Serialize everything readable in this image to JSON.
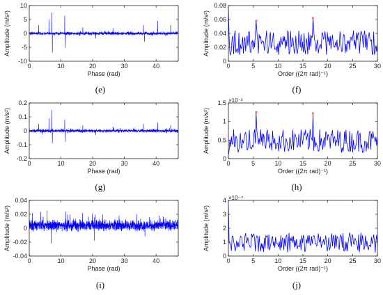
{
  "chart_data": [
    {
      "panel": "e",
      "type": "line",
      "label": "(e)",
      "xlabel": "Phase (rad)",
      "ylabel": "Amplitude (m/s²)",
      "xlim": [
        0,
        47
      ],
      "ylim": [
        -10,
        10
      ],
      "xticks": [
        0,
        10,
        20,
        30,
        40
      ],
      "yticks": [
        -10,
        -5,
        0,
        5,
        10
      ],
      "color": "#0000ff",
      "signal": {
        "noise": 0.6,
        "spikes": [
          [
            3.0,
            3.0
          ],
          [
            6.2,
            5.0
          ],
          [
            7.1,
            7.5
          ],
          [
            7.3,
            -6.9
          ],
          [
            11.2,
            6.4
          ],
          [
            11.4,
            -5.2
          ],
          [
            16.9,
            2.2
          ],
          [
            21.0,
            -1.8
          ],
          [
            26.4,
            1.9
          ],
          [
            36.0,
            3.0
          ],
          [
            36.3,
            -3.0
          ],
          [
            40.5,
            4.5
          ],
          [
            44.6,
            3.0
          ]
        ]
      }
    },
    {
      "panel": "f",
      "type": "line",
      "label": "(f)",
      "xlabel": "Order ((2π rad)⁻¹)",
      "ylabel": "Amplitude (m/s²)",
      "xlim": [
        0,
        30
      ],
      "ylim": [
        0,
        0.08
      ],
      "xticks": [
        0,
        5,
        10,
        15,
        20,
        25,
        30
      ],
      "yticks": [
        0,
        0.02,
        0.04,
        0.06,
        0.08
      ],
      "color": "#0000ff",
      "spectrum": {
        "n": 200,
        "base": 0.025,
        "spread": 0.022,
        "first": 0.075
      },
      "peaks": [
        {
          "x": 5.6,
          "y": 0.058
        },
        {
          "x": 17.0,
          "y": 0.062
        }
      ],
      "peak_color": "#ff6666"
    },
    {
      "panel": "g",
      "type": "line",
      "label": "(g)",
      "xlabel": "Phase (rad)",
      "ylabel": "Amplitude (m/s²)",
      "xlim": [
        0,
        47
      ],
      "ylim": [
        -0.2,
        0.2
      ],
      "xticks": [
        0,
        10,
        20,
        30,
        40
      ],
      "yticks": [
        -0.2,
        -0.1,
        0,
        0.1,
        0.2
      ],
      "color": "#0000ff",
      "signal": {
        "noise": 0.012,
        "spikes": [
          [
            3.0,
            0.05
          ],
          [
            6.2,
            0.09
          ],
          [
            7.1,
            0.15
          ],
          [
            7.3,
            -0.09
          ],
          [
            11.2,
            0.08
          ],
          [
            11.4,
            -0.08
          ],
          [
            16.9,
            0.04
          ],
          [
            21.0,
            -0.03
          ],
          [
            26.4,
            0.03
          ],
          [
            36.0,
            0.05
          ],
          [
            40.5,
            0.06
          ],
          [
            44.6,
            0.04
          ]
        ]
      }
    },
    {
      "panel": "h",
      "type": "line",
      "label": "(h)",
      "xlabel": "Order ((2π rad)⁻¹)",
      "ylabel": "Amplitude (m/s²)",
      "xlim": [
        0,
        30
      ],
      "ylim": [
        0,
        0.0015
      ],
      "exponent": "×10⁻³",
      "xticks": [
        0,
        5,
        10,
        15,
        20,
        25,
        30
      ],
      "yticks": [
        0,
        0.5,
        1,
        1.5
      ],
      "color": "#0000ff",
      "spectrum": {
        "n": 200,
        "base": 0.00045,
        "spread": 0.0004,
        "first": 0.0001
      },
      "peaks": [
        {
          "x": 5.6,
          "y": 0.00125
        },
        {
          "x": 17.0,
          "y": 0.00122
        }
      ],
      "peak_color": "#ff6666"
    },
    {
      "panel": "i",
      "type": "line",
      "label": "(i)",
      "xlabel": "Phase (rad)",
      "ylabel": "Amplitude (m/s²)",
      "xlim": [
        0,
        47
      ],
      "ylim": [
        -0.04,
        0.04
      ],
      "xticks": [
        0,
        10,
        20,
        30,
        40
      ],
      "yticks": [
        -0.04,
        -0.02,
        0,
        0.02,
        0.04
      ],
      "color": "#0000ff",
      "signal": {
        "noise": 0.008,
        "offset": 0.004,
        "spikes": [
          [
            1.0,
            0.022
          ],
          [
            5.6,
            0.025
          ],
          [
            6.9,
            -0.022
          ],
          [
            11.5,
            0.024
          ],
          [
            16.8,
            0.022
          ],
          [
            20.5,
            -0.018
          ],
          [
            23.1,
            0.02
          ],
          [
            33.9,
            0.02
          ],
          [
            36.5,
            -0.012
          ],
          [
            41.0,
            0.018
          ]
        ]
      }
    },
    {
      "panel": "j",
      "type": "line",
      "label": "(j)",
      "xlabel": "Order ((2π rad)⁻¹)",
      "ylabel": "Amplitude (m/s²)",
      "xlim": [
        0,
        30
      ],
      "ylim": [
        0,
        0.0004
      ],
      "exponent": "×10⁻⁴",
      "xticks": [
        0,
        5,
        10,
        15,
        20,
        25,
        30
      ],
      "yticks": [
        0,
        1,
        2,
        3,
        4
      ],
      "color": "#0000ff",
      "spectrum": {
        "n": 200,
        "base": 9e-05,
        "spread": 9e-05,
        "first": 0.00037
      },
      "peaks": [],
      "peak_color": "#ff6666"
    }
  ]
}
